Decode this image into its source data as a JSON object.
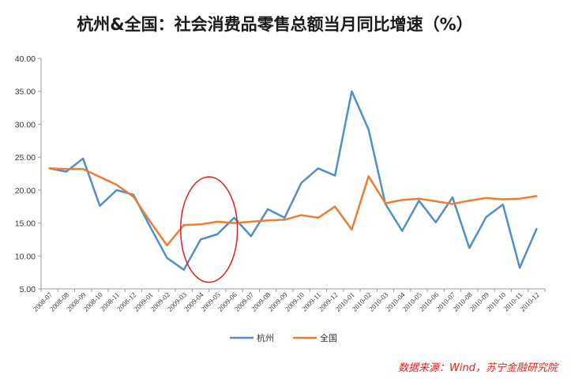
{
  "chart_data": {
    "type": "line",
    "title": "杭州&全国：社会消费品零售总额当月同比增速（%）",
    "categories": [
      "2008-07",
      "2008-08",
      "2008-09",
      "2008-10",
      "2008-11",
      "2008-12",
      "2009-01",
      "2009-02",
      "2009-03",
      "2009-04",
      "2009-05",
      "2009-06",
      "2009-07",
      "2009-08",
      "2009-09",
      "2009-10",
      "2009-11",
      "2009-12",
      "2010-01",
      "2010-02",
      "2010-03",
      "2010-04",
      "2010-05",
      "2010-06",
      "2010-07",
      "2010-08",
      "2010-09",
      "2010-10",
      "2010-11",
      "2010-12"
    ],
    "y_ticks": [
      "5.00",
      "10.00",
      "15.00",
      "20.00",
      "25.00",
      "30.00",
      "35.00",
      "40.00"
    ],
    "ylim": [
      5,
      40
    ],
    "grid": false,
    "legend_position": "bottom",
    "series": [
      {
        "name": "杭州",
        "color": "#4f8fc9",
        "values": [
          23.3,
          22.8,
          24.8,
          17.6,
          20.0,
          19.3,
          14.4,
          9.7,
          7.9,
          12.5,
          13.3,
          15.8,
          13.0,
          17.1,
          15.8,
          21.1,
          23.3,
          22.2,
          35.0,
          29.2,
          17.9,
          13.8,
          18.4,
          15.1,
          18.9,
          11.2,
          15.9,
          17.8,
          8.2,
          14.1
        ]
      },
      {
        "name": "全国",
        "color": "#ed7d31",
        "values": [
          23.3,
          23.2,
          23.2,
          22.0,
          20.8,
          19.0,
          15.2,
          11.6,
          14.7,
          14.8,
          15.2,
          15.0,
          15.2,
          15.4,
          15.5,
          16.2,
          15.8,
          17.5,
          14.0,
          22.1,
          18.0,
          18.5,
          18.7,
          18.3,
          17.9,
          18.4,
          18.8,
          18.6,
          18.7,
          19.1
        ]
      }
    ],
    "annotation": {
      "shape": "ellipse",
      "color": "#e0201b",
      "from_category": "2009-03",
      "to_category": "2009-06",
      "y_range": [
        6,
        22
      ]
    },
    "source": "数据来源：Wind，苏宁金融研究院"
  }
}
